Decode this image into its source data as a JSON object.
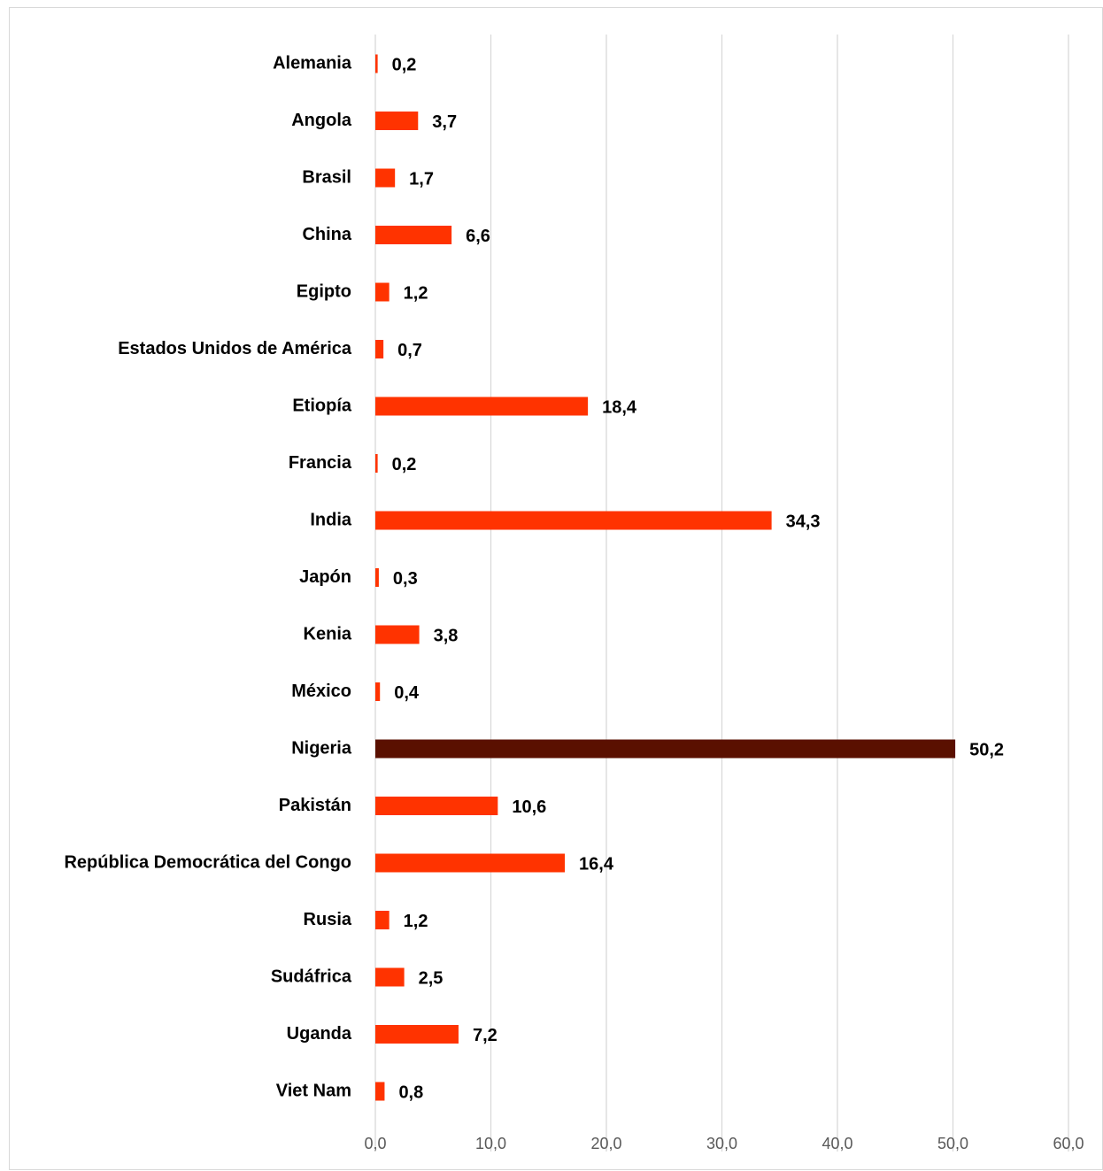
{
  "chart_data": {
    "type": "bar",
    "orientation": "horizontal",
    "categories": [
      "Alemania",
      "Angola",
      "Brasil",
      "China",
      "Egipto",
      "Estados Unidos de América",
      "Etiopía",
      "Francia",
      "India",
      "Japón",
      "Kenia",
      "México",
      "Nigeria",
      "Pakistán",
      "República Democrática del Congo",
      "Rusia",
      "Sudáfrica",
      "Uganda",
      "Viet Nam"
    ],
    "values": [
      0.2,
      3.7,
      1.7,
      6.6,
      1.2,
      0.7,
      18.4,
      0.2,
      34.3,
      0.3,
      3.8,
      0.4,
      50.2,
      10.6,
      16.4,
      1.2,
      2.5,
      7.2,
      0.8
    ],
    "value_labels": [
      "0,2",
      "3,7",
      "1,7",
      "6,6",
      "1,2",
      "0,7",
      "18,4",
      "0,2",
      "34,3",
      "0,3",
      "3,8",
      "0,4",
      "50,2",
      "10,6",
      "16,4",
      "1,2",
      "2,5",
      "7,2",
      "0,8"
    ],
    "highlight_category": "Nigeria",
    "x_ticks": [
      0,
      10,
      20,
      30,
      40,
      50,
      60
    ],
    "x_tick_labels": [
      "0,0",
      "10,0",
      "20,0",
      "30,0",
      "40,0",
      "50,0",
      "60,0"
    ],
    "xlim": [
      0,
      60
    ],
    "grid": "vertical",
    "title": "",
    "xlabel": "",
    "ylabel": ""
  },
  "colors": {
    "bar": "#ff3300",
    "highlight_bar": "#5a1000",
    "grid": "#d9d9d9",
    "tick_text": "#595959",
    "label_text": "#000000"
  }
}
